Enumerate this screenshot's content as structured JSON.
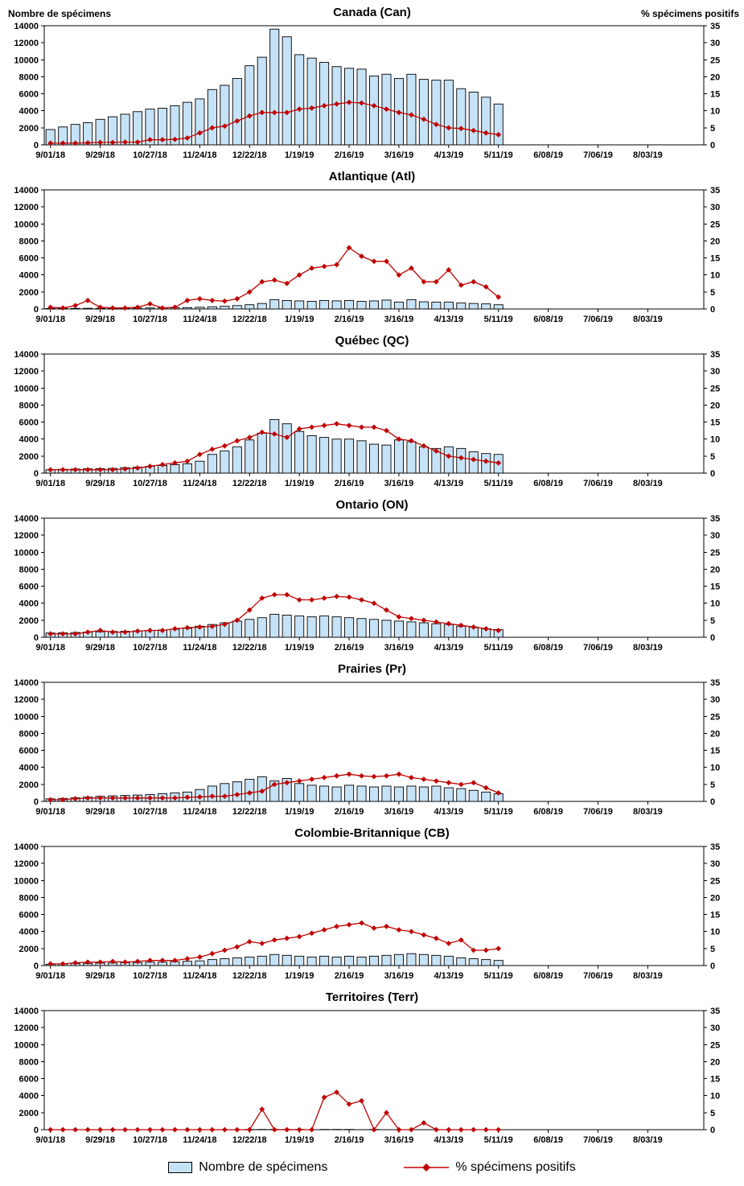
{
  "axis_titles": {
    "left": "Nombre de spécimens",
    "right": "% spécimens positifs"
  },
  "legend": {
    "bars": "Nombre de spécimens",
    "line": "% spécimens positifs"
  },
  "colors": {
    "bar_fill": "#C6E2F7",
    "bar_border": "#000000",
    "line": "#C00000",
    "axis": "#000000"
  },
  "weeks_total": 53,
  "x_tick_labels": [
    "9/01/18",
    "9/29/18",
    "10/27/18",
    "11/24/18",
    "12/22/18",
    "1/19/19",
    "2/16/19",
    "3/16/19",
    "4/13/19",
    "5/11/19",
    "6/08/19",
    "7/06/19",
    "8/03/19"
  ],
  "y_left": {
    "min": 0,
    "max": 14000,
    "step": 2000
  },
  "y_right": {
    "min": 0,
    "max": 35,
    "step": 5
  },
  "chart_data": [
    {
      "type": "bar",
      "title": "Canada (Can)",
      "x_start": "9/01/18",
      "x_end_of_data": "5/11/19",
      "bars": [
        1800,
        2100,
        2400,
        2600,
        3000,
        3300,
        3600,
        3900,
        4200,
        4300,
        4600,
        5000,
        5400,
        6500,
        7000,
        7800,
        9300,
        10300,
        13600,
        12700,
        10600,
        10200,
        9700,
        9200,
        9000,
        8900,
        8100,
        8300,
        7800,
        8300,
        7700,
        7600,
        7600,
        6600,
        6200,
        5600,
        4800
      ],
      "pct": [
        0.5,
        0.5,
        0.5,
        0.6,
        0.7,
        0.7,
        0.8,
        0.8,
        1.5,
        1.5,
        1.6,
        2,
        3.5,
        5,
        5.5,
        7,
        8.5,
        9.5,
        9.5,
        9.5,
        10.5,
        10.8,
        11.5,
        12,
        12.5,
        12.3,
        11.5,
        10.5,
        9.5,
        8.8,
        7.5,
        6,
        5,
        4.8,
        4.2,
        3.5,
        3
      ]
    },
    {
      "type": "bar",
      "title": "Atlantique (Atl)",
      "x_start": "9/01/18",
      "x_end_of_data": "5/11/19",
      "bars": [
        60,
        70,
        70,
        80,
        80,
        90,
        90,
        100,
        120,
        130,
        140,
        160,
        200,
        260,
        320,
        400,
        500,
        650,
        1100,
        1000,
        950,
        900,
        1000,
        950,
        1000,
        900,
        950,
        1050,
        800,
        1100,
        850,
        800,
        800,
        700,
        650,
        600,
        500
      ],
      "pct": [
        0.5,
        0.3,
        1,
        2.5,
        0.5,
        0.3,
        0.3,
        0.5,
        1.5,
        0.3,
        0.5,
        2.5,
        3,
        2.5,
        2.3,
        3,
        5,
        8,
        8.5,
        7.5,
        10,
        12,
        12.5,
        13,
        18,
        15.5,
        14,
        14,
        10,
        12,
        8,
        8,
        11.5,
        7,
        8,
        6.5,
        3.5
      ]
    },
    {
      "type": "bar",
      "title": "Québec (QC)",
      "x_start": "9/01/18",
      "x_end_of_data": "5/11/19",
      "bars": [
        400,
        450,
        480,
        500,
        520,
        560,
        650,
        700,
        800,
        900,
        1000,
        1100,
        1400,
        2200,
        2600,
        3100,
        3900,
        4700,
        6300,
        5800,
        4900,
        4400,
        4200,
        4000,
        4000,
        3800,
        3400,
        3300,
        3900,
        3700,
        3100,
        2900,
        3100,
        2900,
        2500,
        2300,
        2200
      ],
      "pct": [
        1,
        1,
        1,
        1,
        1,
        1,
        1.2,
        1.5,
        2,
        2.5,
        3,
        3.5,
        5.5,
        7,
        8,
        9.5,
        10.5,
        12,
        11.5,
        10.5,
        13,
        13.5,
        14,
        14.5,
        14,
        13.5,
        13.5,
        12.5,
        10,
        9.5,
        8,
        6.5,
        5,
        4.5,
        4,
        3.5,
        3
      ]
    },
    {
      "type": "bar",
      "title": "Ontario (ON)",
      "x_start": "9/01/18",
      "x_end_of_data": "5/11/19",
      "bars": [
        500,
        520,
        560,
        600,
        650,
        680,
        700,
        750,
        800,
        850,
        950,
        1050,
        1300,
        1500,
        1700,
        1900,
        2100,
        2300,
        2700,
        2600,
        2500,
        2400,
        2500,
        2400,
        2300,
        2200,
        2100,
        2000,
        1900,
        1800,
        1700,
        1600,
        1500,
        1300,
        1200,
        1000,
        900
      ],
      "pct": [
        1,
        1,
        1,
        1.5,
        2,
        1.5,
        1.5,
        1.8,
        2,
        2,
        2.5,
        2.8,
        3,
        3.2,
        3.8,
        5,
        8,
        11.5,
        12.5,
        12.5,
        11,
        11,
        11.5,
        12,
        11.8,
        11,
        10,
        8,
        6,
        5.5,
        5,
        4.5,
        4,
        3.5,
        3,
        2.5,
        2
      ]
    },
    {
      "type": "bar",
      "title": "Prairies (Pr)",
      "x_start": "9/01/18",
      "x_end_of_data": "5/11/19",
      "bars": [
        300,
        350,
        420,
        500,
        600,
        650,
        700,
        750,
        800,
        900,
        1000,
        1100,
        1400,
        1800,
        2100,
        2300,
        2600,
        2900,
        2400,
        2700,
        2100,
        1900,
        1800,
        1700,
        1900,
        1800,
        1700,
        1800,
        1700,
        1800,
        1700,
        1800,
        1600,
        1500,
        1300,
        1100,
        900
      ],
      "pct": [
        0.5,
        0.5,
        0.8,
        1,
        1,
        1,
        1,
        1,
        1,
        1,
        1,
        1.2,
        1.3,
        1.5,
        1.5,
        2,
        2.5,
        3,
        5,
        5.5,
        6,
        6.5,
        7,
        7.5,
        8,
        7.5,
        7.3,
        7.5,
        8,
        7,
        6.5,
        6,
        5.5,
        5,
        5.5,
        4,
        2.5
      ]
    },
    {
      "type": "bar",
      "title": "Colombie-Britannique (CB)",
      "x_start": "9/01/18",
      "x_end_of_data": "5/11/19",
      "bars": [
        150,
        200,
        250,
        250,
        300,
        300,
        350,
        350,
        400,
        400,
        450,
        500,
        550,
        700,
        800,
        900,
        1000,
        1100,
        1300,
        1200,
        1100,
        1000,
        1100,
        1000,
        1100,
        1000,
        1100,
        1200,
        1300,
        1400,
        1300,
        1200,
        1100,
        900,
        800,
        700,
        600
      ],
      "pct": [
        0.5,
        0.5,
        0.8,
        1,
        1,
        1.2,
        1,
        1.2,
        1.5,
        1.5,
        1.5,
        2,
        2.5,
        3.5,
        4.5,
        5.5,
        7,
        6.5,
        7.5,
        8,
        8.5,
        9.5,
        10.5,
        11.5,
        12,
        12.5,
        11,
        11.5,
        10.5,
        10,
        9,
        8,
        6.5,
        7.5,
        4.5,
        4.5,
        5
      ]
    },
    {
      "type": "bar",
      "title": "Territoires (Terr)",
      "x_start": "9/01/18",
      "x_end_of_data": "5/11/19",
      "bars": [
        10,
        10,
        15,
        10,
        10,
        15,
        10,
        10,
        15,
        10,
        15,
        10,
        15,
        20,
        20,
        25,
        30,
        30,
        35,
        30,
        30,
        25,
        30,
        30,
        30,
        25,
        30,
        25,
        25,
        20,
        20,
        20,
        15,
        15,
        10,
        10,
        10
      ],
      "pct": [
        0,
        0,
        0,
        0,
        0,
        0,
        0,
        0,
        0,
        0,
        0,
        0,
        0,
        0,
        0,
        0,
        0,
        6,
        0,
        0,
        0,
        0,
        9.5,
        11,
        7.5,
        8.5,
        0,
        5,
        0,
        0,
        2,
        0,
        0,
        0,
        0,
        0,
        0
      ]
    }
  ]
}
